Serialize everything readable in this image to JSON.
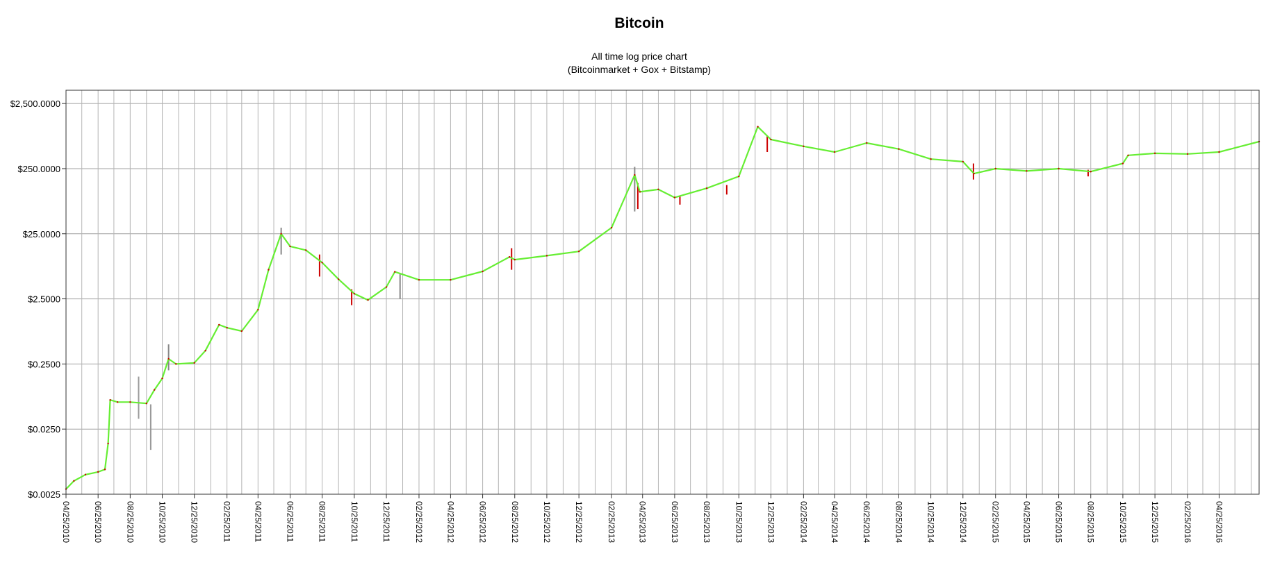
{
  "chart_data": {
    "type": "line",
    "title": "Bitcoin",
    "subtitle_lines": [
      "All time log price chart",
      "(Bitcoinmarket + Gox + Bitstamp)"
    ],
    "xlabel": "",
    "ylabel": "",
    "y_scale": "log",
    "ylim": [
      0.0025,
      4000
    ],
    "y_ticks": [
      {
        "value": 2500,
        "label": "$2,500.0000"
      },
      {
        "value": 250,
        "label": "$250.0000"
      },
      {
        "value": 25,
        "label": "$25.0000"
      },
      {
        "value": 2.5,
        "label": "$2.5000"
      },
      {
        "value": 0.25,
        "label": "$0.2500"
      },
      {
        "value": 0.025,
        "label": "$0.0250"
      },
      {
        "value": 0.0025,
        "label": "$0.0025"
      }
    ],
    "xlim": [
      "2010-04-25",
      "2016-07-10"
    ],
    "x_ticks": [
      {
        "date": "2010-04-25",
        "label": "04/25/2010"
      },
      {
        "date": "2010-06-25",
        "label": "06/25/2010"
      },
      {
        "date": "2010-08-25",
        "label": "08/25/2010"
      },
      {
        "date": "2010-10-25",
        "label": "10/25/2010"
      },
      {
        "date": "2010-12-25",
        "label": "12/25/2010"
      },
      {
        "date": "2011-02-25",
        "label": "02/25/2011"
      },
      {
        "date": "2011-04-25",
        "label": "04/25/2011"
      },
      {
        "date": "2011-06-25",
        "label": "06/25/2011"
      },
      {
        "date": "2011-08-25",
        "label": "08/25/2011"
      },
      {
        "date": "2011-10-25",
        "label": "10/25/2011"
      },
      {
        "date": "2011-12-25",
        "label": "12/25/2011"
      },
      {
        "date": "2012-02-25",
        "label": "02/25/2012"
      },
      {
        "date": "2012-04-25",
        "label": "04/25/2012"
      },
      {
        "date": "2012-06-25",
        "label": "06/25/2012"
      },
      {
        "date": "2012-08-25",
        "label": "08/25/2012"
      },
      {
        "date": "2012-10-25",
        "label": "10/25/2012"
      },
      {
        "date": "2012-12-25",
        "label": "12/25/2012"
      },
      {
        "date": "2013-02-25",
        "label": "02/25/2013"
      },
      {
        "date": "2013-04-25",
        "label": "04/25/2013"
      },
      {
        "date": "2013-06-25",
        "label": "06/25/2013"
      },
      {
        "date": "2013-08-25",
        "label": "08/25/2013"
      },
      {
        "date": "2013-10-25",
        "label": "10/25/2013"
      },
      {
        "date": "2013-12-25",
        "label": "12/25/2013"
      },
      {
        "date": "2014-02-25",
        "label": "02/25/2014"
      },
      {
        "date": "2014-04-25",
        "label": "04/25/2014"
      },
      {
        "date": "2014-06-25",
        "label": "06/25/2014"
      },
      {
        "date": "2014-08-25",
        "label": "08/25/2014"
      },
      {
        "date": "2014-10-25",
        "label": "10/25/2014"
      },
      {
        "date": "2014-12-25",
        "label": "12/25/2014"
      },
      {
        "date": "2015-02-25",
        "label": "02/25/2015"
      },
      {
        "date": "2015-04-25",
        "label": "04/25/2015"
      },
      {
        "date": "2015-06-25",
        "label": "06/25/2015"
      },
      {
        "date": "2015-08-25",
        "label": "08/25/2015"
      },
      {
        "date": "2015-10-25",
        "label": "10/25/2015"
      },
      {
        "date": "2015-12-25",
        "label": "12/25/2015"
      },
      {
        "date": "2016-02-25",
        "label": "02/25/2016"
      },
      {
        "date": "2016-04-25",
        "label": "04/25/2016"
      }
    ],
    "grid": {
      "vertical": true,
      "horizontal": true
    },
    "legend": "none",
    "series": [
      {
        "color": "#66ee33",
        "points": [
          {
            "date": "2010-04-25",
            "value": 0.003
          },
          {
            "date": "2010-05-10",
            "value": 0.004
          },
          {
            "date": "2010-06-01",
            "value": 0.005
          },
          {
            "date": "2010-06-25",
            "value": 0.0055
          },
          {
            "date": "2010-07-08",
            "value": 0.006
          },
          {
            "date": "2010-07-14",
            "value": 0.015
          },
          {
            "date": "2010-07-18",
            "value": 0.07
          },
          {
            "date": "2010-08-01",
            "value": 0.065
          },
          {
            "date": "2010-08-25",
            "value": 0.065
          },
          {
            "date": "2010-09-25",
            "value": 0.062
          },
          {
            "date": "2010-10-10",
            "value": 0.1
          },
          {
            "date": "2010-10-25",
            "value": 0.15
          },
          {
            "date": "2010-11-06",
            "value": 0.3
          },
          {
            "date": "2010-11-20",
            "value": 0.25
          },
          {
            "date": "2010-12-25",
            "value": 0.26
          },
          {
            "date": "2011-01-15",
            "value": 0.4
          },
          {
            "date": "2011-02-10",
            "value": 1.0
          },
          {
            "date": "2011-02-25",
            "value": 0.9
          },
          {
            "date": "2011-03-25",
            "value": 0.8
          },
          {
            "date": "2011-04-25",
            "value": 1.7
          },
          {
            "date": "2011-05-15",
            "value": 7.0
          },
          {
            "date": "2011-06-08",
            "value": 25.0
          },
          {
            "date": "2011-06-25",
            "value": 16.0
          },
          {
            "date": "2011-07-25",
            "value": 14.0
          },
          {
            "date": "2011-08-25",
            "value": 9.0
          },
          {
            "date": "2011-09-25",
            "value": 5.0
          },
          {
            "date": "2011-10-25",
            "value": 3.0
          },
          {
            "date": "2011-11-20",
            "value": 2.4
          },
          {
            "date": "2011-12-25",
            "value": 3.8
          },
          {
            "date": "2012-01-10",
            "value": 6.5
          },
          {
            "date": "2012-02-25",
            "value": 4.9
          },
          {
            "date": "2012-04-25",
            "value": 4.9
          },
          {
            "date": "2012-06-25",
            "value": 6.6
          },
          {
            "date": "2012-08-15",
            "value": 11.0
          },
          {
            "date": "2012-08-25",
            "value": 10.0
          },
          {
            "date": "2012-10-25",
            "value": 11.5
          },
          {
            "date": "2012-12-25",
            "value": 13.4
          },
          {
            "date": "2013-02-25",
            "value": 31.0
          },
          {
            "date": "2013-04-10",
            "value": 200.0
          },
          {
            "date": "2013-04-20",
            "value": 110.0
          },
          {
            "date": "2013-05-25",
            "value": 120.0
          },
          {
            "date": "2013-06-25",
            "value": 90.0
          },
          {
            "date": "2013-08-25",
            "value": 125.0
          },
          {
            "date": "2013-10-25",
            "value": 190.0
          },
          {
            "date": "2013-11-30",
            "value": 1100.0
          },
          {
            "date": "2013-12-25",
            "value": 700.0
          },
          {
            "date": "2014-02-25",
            "value": 550.0
          },
          {
            "date": "2014-04-25",
            "value": 450.0
          },
          {
            "date": "2014-06-25",
            "value": 620.0
          },
          {
            "date": "2014-08-25",
            "value": 500.0
          },
          {
            "date": "2014-10-25",
            "value": 350.0
          },
          {
            "date": "2014-12-25",
            "value": 320.0
          },
          {
            "date": "2015-01-15",
            "value": 210.0
          },
          {
            "date": "2015-02-25",
            "value": 250.0
          },
          {
            "date": "2015-04-25",
            "value": 230.0
          },
          {
            "date": "2015-06-25",
            "value": 250.0
          },
          {
            "date": "2015-08-25",
            "value": 225.0
          },
          {
            "date": "2015-10-25",
            "value": 300.0
          },
          {
            "date": "2015-11-04",
            "value": 400.0
          },
          {
            "date": "2015-12-25",
            "value": 430.0
          },
          {
            "date": "2016-02-25",
            "value": 420.0
          },
          {
            "date": "2016-04-25",
            "value": 450.0
          },
          {
            "date": "2016-07-10",
            "value": 650.0
          }
        ]
      }
    ],
    "wicks": [
      {
        "date": "2010-09-10",
        "low": 0.036,
        "high": 0.16,
        "color": "#999999"
      },
      {
        "date": "2010-10-03",
        "low": 0.012,
        "high": 0.06,
        "color": "#999999"
      },
      {
        "date": "2010-11-06",
        "low": 0.2,
        "high": 0.5,
        "color": "#888888"
      },
      {
        "date": "2011-06-08",
        "low": 12.0,
        "high": 31.0,
        "color": "#888888"
      },
      {
        "date": "2011-08-20",
        "low": 5.5,
        "high": 12.0,
        "color": "#cc0000"
      },
      {
        "date": "2011-10-20",
        "low": 2.0,
        "high": 3.5,
        "color": "#cc0000"
      },
      {
        "date": "2012-01-20",
        "low": 2.5,
        "high": 6.0,
        "color": "#888888"
      },
      {
        "date": "2012-08-19",
        "low": 7.0,
        "high": 15.0,
        "color": "#cc0000"
      },
      {
        "date": "2013-04-10",
        "low": 55.0,
        "high": 266.0,
        "color": "#888888"
      },
      {
        "date": "2013-04-16",
        "low": 60.0,
        "high": 150.0,
        "color": "#cc0000"
      },
      {
        "date": "2013-07-05",
        "low": 70.0,
        "high": 95.0,
        "color": "#cc0000"
      },
      {
        "date": "2013-10-02",
        "low": 100.0,
        "high": 140.0,
        "color": "#cc0000"
      },
      {
        "date": "2013-12-18",
        "low": 450.0,
        "high": 800.0,
        "color": "#cc0000"
      },
      {
        "date": "2015-01-14",
        "low": 170.0,
        "high": 300.0,
        "color": "#cc0000"
      },
      {
        "date": "2015-08-20",
        "low": 190.0,
        "high": 240.0,
        "color": "#cc0000"
      }
    ]
  }
}
